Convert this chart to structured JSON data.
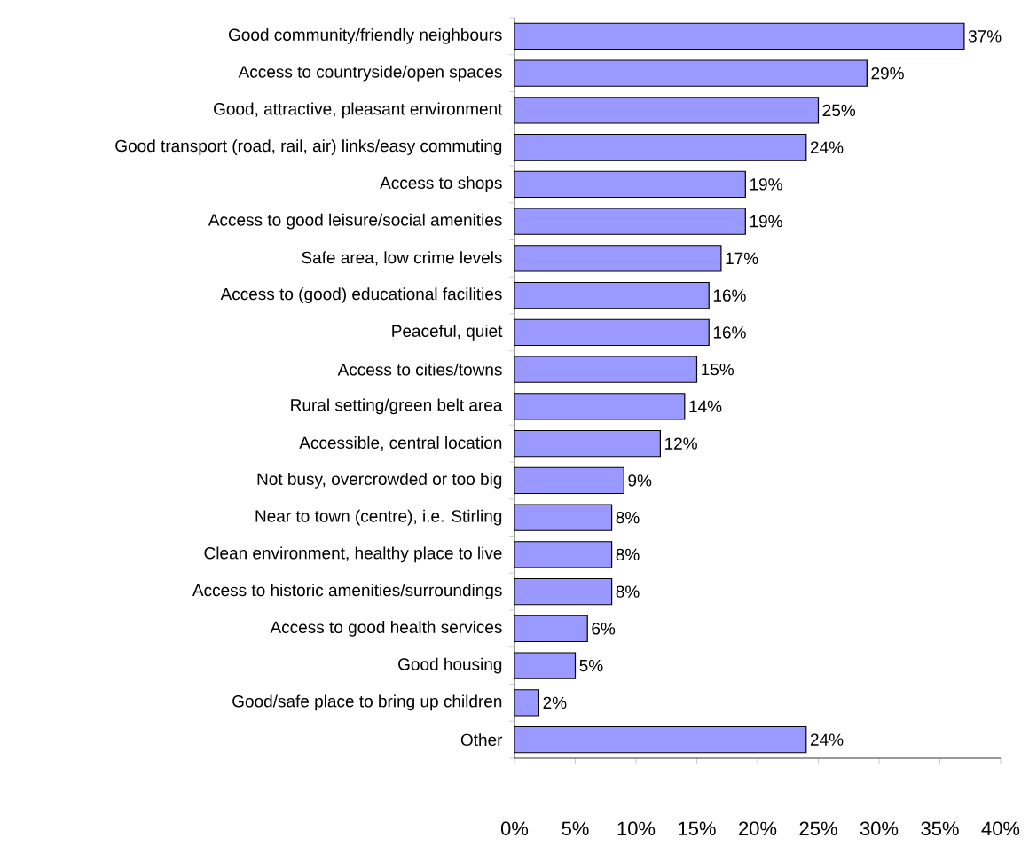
{
  "chart_data": {
    "type": "bar",
    "orientation": "horizontal",
    "categories": [
      "Good community/friendly neighbours",
      "Access to countryside/open spaces",
      "Good, attractive, pleasant environment",
      "Good transport (road, rail, air) links/easy commuting",
      "Access to shops",
      "Access to good leisure/social amenities",
      "Safe area, low crime levels",
      "Access to (good) educational facilities",
      "Peaceful, quiet",
      "Access to cities/towns",
      "Rural setting/green belt area",
      "Accessible, central location",
      "Not busy, overcrowded or too big",
      "Near to town (centre), i.e. Stirling",
      "Clean environment, healthy place to live",
      "Access to historic amenities/surroundings",
      "Access to good health services",
      "Good housing",
      "Good/safe place to bring up children",
      "Other"
    ],
    "values": [
      37,
      29,
      25,
      24,
      19,
      19,
      17,
      16,
      16,
      15,
      14,
      12,
      9,
      8,
      8,
      8,
      6,
      5,
      2,
      24
    ],
    "value_labels": [
      "37%",
      "29%",
      "25%",
      "24%",
      "19%",
      "19%",
      "17%",
      "16%",
      "16%",
      "15%",
      "14%",
      "12%",
      "9%",
      "8%",
      "8%",
      "8%",
      "6%",
      "5%",
      "2%",
      "24%"
    ],
    "color": "#9999ff",
    "xlim": [
      0,
      40
    ],
    "xticks": [
      {
        "value": 0,
        "label": "0%"
      },
      {
        "value": 5,
        "label": "5%"
      },
      {
        "value": 10,
        "label": "10%"
      },
      {
        "value": 15,
        "label": "15%"
      },
      {
        "value": 20,
        "label": "20%"
      },
      {
        "value": 25,
        "label": "25%"
      },
      {
        "value": 30,
        "label": "30%"
      },
      {
        "value": 35,
        "label": "35%"
      },
      {
        "value": 40,
        "label": "40%"
      }
    ],
    "grid": false
  }
}
